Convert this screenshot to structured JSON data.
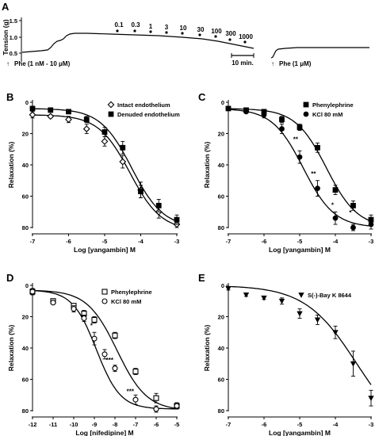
{
  "trace": {
    "panel_label": "A",
    "ylabel": "Tension (g)",
    "yticks": [
      "1.5",
      "1.0",
      "0.5"
    ],
    "doses": [
      "0.1",
      "0.3",
      "1",
      "3",
      "10",
      "30",
      "100",
      "300",
      "1000"
    ],
    "phe_range_label": "Phe (1 nM - 10 μM)",
    "phe_single_label": "Phe (1 μM)",
    "scale_label": "10 min.",
    "arrow_glyph": "↑"
  },
  "chart_data": [
    {
      "id": "B",
      "panel_label": "B",
      "type": "scatter",
      "xlabel": "Log [yangambin] M",
      "ylabel": "Relaxation (%)",
      "xlim": [
        -7,
        -3
      ],
      "ylim": [
        0,
        80
      ],
      "xticks": [
        -7,
        -6,
        -5,
        -4,
        -3
      ],
      "yticks": [
        0,
        20,
        40,
        60,
        80
      ],
      "legend_position": "top-right",
      "annotations": [],
      "series": [
        {
          "name": "Intact endothelium",
          "marker": "diamond-open",
          "x": [
            -7,
            -6.5,
            -6,
            -5.5,
            -5,
            -4.5,
            -4,
            -3.5,
            -3
          ],
          "y": [
            8,
            9,
            11,
            17,
            25,
            38,
            56,
            70,
            78
          ],
          "err": [
            2,
            1,
            2,
            3,
            3,
            4,
            5,
            4,
            2
          ],
          "fit": {
            "top": 8,
            "bottom": 82,
            "logec50": -4.3,
            "hill": 1
          }
        },
        {
          "name": "Denuded endothelium",
          "marker": "square-filled",
          "x": [
            -7,
            -6.5,
            -6,
            -5.5,
            -5,
            -4.5,
            -4,
            -3.5,
            -3
          ],
          "y": [
            4,
            5,
            6,
            11,
            19,
            29,
            57,
            66,
            75
          ],
          "err": [
            1,
            1,
            1,
            2,
            3,
            4,
            4,
            4,
            3
          ],
          "fit": {
            "top": 4,
            "bottom": 80,
            "logec50": -4.25,
            "hill": 1
          }
        }
      ]
    },
    {
      "id": "C",
      "panel_label": "C",
      "type": "scatter",
      "xlabel": "Log [yangambin] M",
      "ylabel": "Relaxation (%)",
      "xlim": [
        -7,
        -3
      ],
      "ylim": [
        0,
        80
      ],
      "xticks": [
        -7,
        -6,
        -5,
        -4,
        -3
      ],
      "yticks": [
        0,
        20,
        40,
        60,
        80
      ],
      "legend_position": "top-right",
      "annotations": [
        {
          "text": "**",
          "x": -5,
          "y": 25
        },
        {
          "text": "**",
          "x": -4.5,
          "y": 47
        },
        {
          "text": "*",
          "x": -4,
          "y": 67
        },
        {
          "text": "*",
          "x": -3.5,
          "y": 72
        }
      ],
      "series": [
        {
          "name": "Phenylephrine",
          "marker": "square-filled",
          "x": [
            -7,
            -6.5,
            -6,
            -5.5,
            -5,
            -4.5,
            -4,
            -3.5,
            -3
          ],
          "y": [
            4,
            5,
            6,
            11,
            16,
            29,
            56,
            66,
            75
          ],
          "err": [
            1,
            1,
            1,
            2,
            2,
            3,
            3,
            3,
            3
          ],
          "fit": {
            "top": 4,
            "bottom": 80,
            "logec50": -4.25,
            "hill": 1
          }
        },
        {
          "name": "KCl 80 mM",
          "marker": "circle-filled",
          "x": [
            -7,
            -6.5,
            -6,
            -5.5,
            -5,
            -4.5,
            -4,
            -3.5,
            -3
          ],
          "y": [
            4,
            6,
            8,
            17,
            35,
            55,
            74,
            80,
            78
          ],
          "err": [
            1,
            1,
            2,
            3,
            4,
            5,
            4,
            2,
            3
          ],
          "fit": {
            "top": 4,
            "bottom": 80,
            "logec50": -4.9,
            "hill": 1
          }
        }
      ]
    },
    {
      "id": "D",
      "panel_label": "D",
      "type": "scatter",
      "xlabel": "Log [nifedipine] M",
      "ylabel": "Relaxation (%)",
      "xlim": [
        -12,
        -5
      ],
      "ylim": [
        0,
        80
      ],
      "xticks": [
        -12,
        -11,
        -10,
        -9,
        -8,
        -7,
        -6,
        -5
      ],
      "yticks": [
        0,
        20,
        40,
        60,
        80
      ],
      "legend_position": "top-right",
      "annotations": [
        {
          "text": "*",
          "x": -9,
          "y": 27
        },
        {
          "text": "***",
          "x": -8,
          "y": 49
        },
        {
          "text": "***",
          "x": -7,
          "y": 69
        }
      ],
      "series": [
        {
          "name": "Phenylephrine",
          "marker": "square-open",
          "x": [
            -12,
            -11,
            -10,
            -9.5,
            -9,
            -8,
            -7,
            -6,
            -5
          ],
          "y": [
            4,
            10,
            13,
            18,
            22,
            32,
            55,
            72,
            77
          ],
          "err": [
            2,
            1,
            1,
            2,
            2,
            2,
            2,
            3,
            2
          ],
          "fit": {
            "top": 3,
            "bottom": 80,
            "logec50": -7.9,
            "hill": 0.6
          }
        },
        {
          "name": "KCl 80 mM",
          "marker": "circle-open",
          "x": [
            -12,
            -11,
            -10,
            -9.5,
            -9,
            -8.5,
            -8,
            -7,
            -6,
            -5
          ],
          "y": [
            4,
            11,
            15,
            21,
            34,
            44,
            53,
            73,
            79,
            77
          ],
          "err": [
            2,
            1,
            2,
            2,
            4,
            3,
            2,
            3,
            2,
            2
          ],
          "fit": {
            "top": 3,
            "bottom": 79,
            "logec50": -8.9,
            "hill": 0.75
          }
        }
      ]
    },
    {
      "id": "E",
      "panel_label": "E",
      "type": "scatter",
      "xlabel": "Log [yangambin] M",
      "ylabel": "Relaxation (%)",
      "xlim": [
        -7,
        -3
      ],
      "ylim": [
        0,
        80
      ],
      "xticks": [
        -7,
        -6,
        -5,
        -4,
        -3
      ],
      "yticks": [
        0,
        20,
        40,
        60,
        80
      ],
      "legend_position": "top-right",
      "annotations": [],
      "series": [
        {
          "name": "S(-)-Bay K 8644",
          "marker": "triangle-down-filled",
          "x": [
            -7,
            -6.5,
            -6,
            -5.5,
            -5,
            -4.5,
            -4,
            -3.5,
            -3
          ],
          "y": [
            2,
            6,
            8,
            10,
            18,
            22,
            30,
            50,
            72
          ],
          "err": [
            1,
            1,
            1,
            2,
            3,
            3,
            4,
            8,
            5
          ],
          "fit": {
            "top": 0,
            "bottom": 100,
            "logec50": -3.4,
            "hill": 0.6
          }
        }
      ]
    }
  ]
}
